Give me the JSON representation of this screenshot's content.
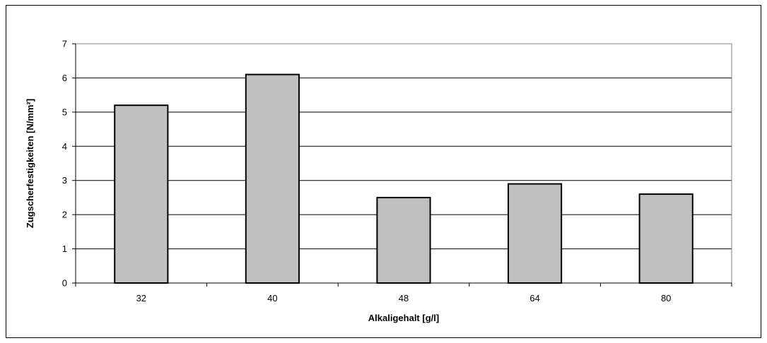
{
  "chart_data": {
    "type": "bar",
    "categories": [
      "32",
      "40",
      "48",
      "64",
      "80"
    ],
    "values": [
      5.2,
      6.1,
      2.5,
      2.9,
      2.6
    ],
    "title": "",
    "xlabel": "Alkaligehalt [g/l]",
    "ylabel": "Zugscherfestigkeiten [N/mm²]",
    "ylim": [
      0,
      7
    ],
    "yticks": [
      0,
      1,
      2,
      3,
      4,
      5,
      6,
      7
    ],
    "grid": true,
    "legend": "none",
    "colors": {
      "bar_fill": "#c0c0c0",
      "bar_stroke": "#000000",
      "gridline": "#000000",
      "plot_border": "#808080"
    }
  }
}
